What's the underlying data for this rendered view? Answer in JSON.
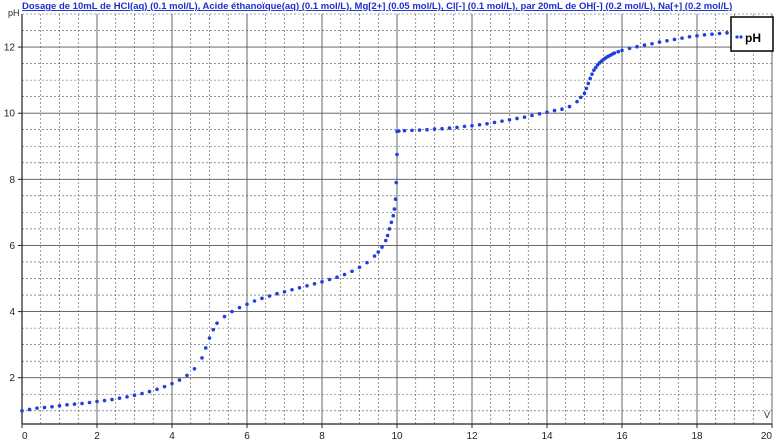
{
  "chart_data": {
    "type": "scatter",
    "title": "Dosage de 10mL de HCl(aq) (0.1 mol/L), Acide éthanoïque(aq) (0.1 mol/L), Mg[2+] (0.05 mol/L), Cl[-] (0.1 mol/L),  par 20mL  de OH[-] (0.2 mol/L), Na[+] (0.2 mol/L)",
    "xlabel": "V",
    "ylabel": "pH",
    "xlim": [
      0,
      20
    ],
    "ylim": [
      0.6,
      13
    ],
    "xticks": [
      0,
      2,
      4,
      6,
      8,
      10,
      12,
      14,
      16,
      18,
      20
    ],
    "yticks": [
      2,
      4,
      6,
      8,
      10,
      12
    ],
    "grid": true,
    "legend_position": "top-right",
    "series": [
      {
        "name": "pH",
        "color": "#1f3fe0",
        "x": [
          0.0,
          0.2,
          0.4,
          0.6,
          0.8,
          1.0,
          1.2,
          1.4,
          1.6,
          1.8,
          2.0,
          2.2,
          2.4,
          2.6,
          2.8,
          3.0,
          3.2,
          3.4,
          3.6,
          3.8,
          4.0,
          4.2,
          4.4,
          4.6,
          4.8,
          4.9,
          5.0,
          5.1,
          5.2,
          5.4,
          5.6,
          5.8,
          6.0,
          6.2,
          6.4,
          6.6,
          6.8,
          7.0,
          7.2,
          7.4,
          7.6,
          7.8,
          8.0,
          8.2,
          8.4,
          8.6,
          8.8,
          9.0,
          9.2,
          9.4,
          9.5,
          9.6,
          9.7,
          9.75,
          9.8,
          9.85,
          9.9,
          9.93,
          9.96,
          9.98,
          10.0,
          10.0,
          10.05,
          10.2,
          10.4,
          10.6,
          10.8,
          11.0,
          11.2,
          11.4,
          11.6,
          11.8,
          12.0,
          12.2,
          12.4,
          12.6,
          12.8,
          13.0,
          13.2,
          13.4,
          13.6,
          13.8,
          14.0,
          14.2,
          14.4,
          14.6,
          14.8,
          14.9,
          15.0,
          15.05,
          15.1,
          15.15,
          15.2,
          15.25,
          15.3,
          15.35,
          15.4,
          15.45,
          15.5,
          15.55,
          15.6,
          15.65,
          15.7,
          15.75,
          15.8,
          15.9,
          16.0,
          16.2,
          16.4,
          16.6,
          16.8,
          17.0,
          17.2,
          17.4,
          17.6,
          17.8,
          18.0,
          18.2,
          18.4,
          18.6,
          18.8,
          19.0,
          19.2
        ],
        "y": [
          1.0,
          1.04,
          1.08,
          1.1,
          1.12,
          1.15,
          1.18,
          1.2,
          1.22,
          1.25,
          1.28,
          1.31,
          1.34,
          1.38,
          1.42,
          1.47,
          1.52,
          1.58,
          1.65,
          1.73,
          1.82,
          1.93,
          2.07,
          2.27,
          2.6,
          2.9,
          3.2,
          3.45,
          3.65,
          3.85,
          4.0,
          4.12,
          4.22,
          4.32,
          4.4,
          4.47,
          4.54,
          4.6,
          4.66,
          4.72,
          4.78,
          4.84,
          4.9,
          4.97,
          5.04,
          5.12,
          5.22,
          5.34,
          5.48,
          5.68,
          5.8,
          5.95,
          6.15,
          6.3,
          6.5,
          6.7,
          6.9,
          7.1,
          7.4,
          7.9,
          8.75,
          9.45,
          9.46,
          9.47,
          9.48,
          9.49,
          9.5,
          9.52,
          9.53,
          9.55,
          9.57,
          9.6,
          9.62,
          9.65,
          9.68,
          9.72,
          9.76,
          9.8,
          9.84,
          9.88,
          9.93,
          9.98,
          10.03,
          10.08,
          10.12,
          10.2,
          10.35,
          10.48,
          10.6,
          10.75,
          10.9,
          11.05,
          11.18,
          11.3,
          11.38,
          11.46,
          11.52,
          11.57,
          11.62,
          11.66,
          11.7,
          11.73,
          11.76,
          11.79,
          11.82,
          11.86,
          11.9,
          11.96,
          12.01,
          12.06,
          12.1,
          12.15,
          12.19,
          12.23,
          12.27,
          12.31,
          12.34,
          12.37,
          12.39,
          12.41,
          12.43,
          12.44,
          12.45
        ]
      }
    ]
  }
}
